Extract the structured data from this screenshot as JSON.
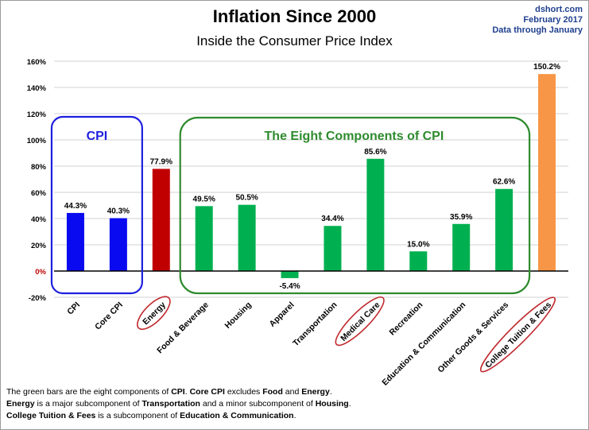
{
  "header": {
    "title": "Inflation Since 2000",
    "subtitle": "Inside the Consumer Price Index",
    "source_site": "dshort.com",
    "source_date": "February 2017",
    "source_note": "Data through January"
  },
  "groups": {
    "cpi_label": "CPI",
    "components_label": "The Eight Components of CPI"
  },
  "footnote": {
    "l1_a": "The green bars are the eight components of ",
    "l1_b": "CPI",
    "l1_c": ". ",
    "l1_d": "Core CPI",
    "l1_e": " excludes ",
    "l1_f": "Food",
    "l1_g": " and ",
    "l1_h": "Energy",
    "l1_i": ".",
    "l2_a": "Energy",
    "l2_b": " is a major subcomponent of ",
    "l2_c": "Transportation",
    "l2_d": " and a minor subcomponent of ",
    "l2_e": "Housing",
    "l2_f": ".",
    "l3_a": "College Tuition & Fees",
    "l3_b": " is a subcomponent of ",
    "l3_c": "Education & Communication",
    "l3_d": "."
  },
  "colors": {
    "cpi": "#0a0af0",
    "energy": "#c00000",
    "component": "#00b050",
    "tuition": "#f79646",
    "cpi_box": "#1f1fe0",
    "components_box": "#2e8b2e",
    "highlight_ring": "#c0282d",
    "grid": "#d0d0d0"
  },
  "chart_data": {
    "type": "bar",
    "categories": [
      "CPI",
      "Core CPI",
      "Energy",
      "Food & Beverage",
      "Housing",
      "Apparel",
      "Transportation",
      "Medical Care",
      "Recreation",
      "Education & Communication",
      "Other Goods & Services",
      "College Tuition & Fees"
    ],
    "values": [
      44.3,
      40.3,
      77.9,
      49.5,
      50.5,
      -5.4,
      34.4,
      85.6,
      15.0,
      35.9,
      62.6,
      150.2
    ],
    "value_labels": [
      "44.3%",
      "40.3%",
      "77.9%",
      "49.5%",
      "50.5%",
      "-5.4%",
      "34.4%",
      "85.6%",
      "15.0%",
      "35.9%",
      "62.6%",
      "150.2%"
    ],
    "bar_colors": [
      "cpi",
      "cpi",
      "energy",
      "component",
      "component",
      "component",
      "component",
      "component",
      "component",
      "component",
      "component",
      "tuition"
    ],
    "highlighted": [
      "Energy",
      "Medical Care",
      "College Tuition & Fees"
    ],
    "ylim": [
      -20,
      160
    ],
    "ytick_values": [
      -20,
      0,
      20,
      40,
      60,
      80,
      100,
      120,
      140,
      160
    ],
    "ytick_labels": [
      "-20%",
      "0%",
      "20%",
      "40%",
      "60%",
      "80%",
      "100%",
      "120%",
      "140%",
      "160%"
    ],
    "grid": true,
    "legend": "none"
  }
}
